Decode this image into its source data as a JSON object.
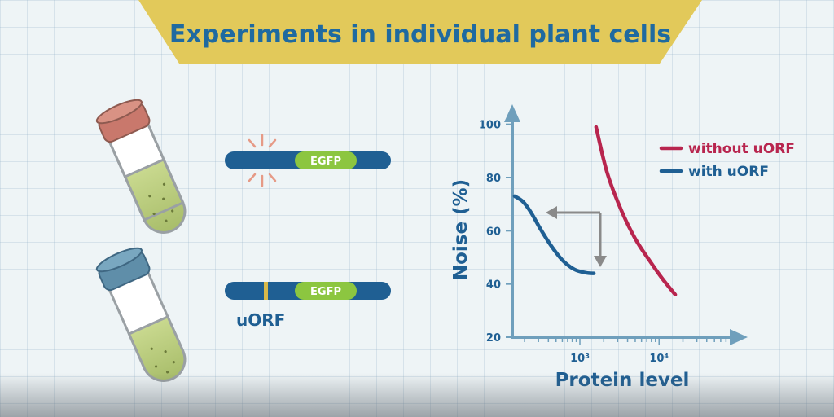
{
  "title": "Experiments in individual plant cells",
  "colors": {
    "banner": "#e2c95a",
    "title": "#1f6aa0",
    "gene_bar": "#1f5f93",
    "egfp": "#8cc640",
    "uorf_marker": "#d9b94a",
    "without_uorf": "#b8254e",
    "with_uorf": "#1f5f93",
    "axis": "#6f9fbc",
    "arrow": "#8a8a8a",
    "burst": "#e69a86"
  },
  "constructs": [
    {
      "gene_label": "EGFP",
      "has_uorf": false
    },
    {
      "gene_label": "EGFP",
      "has_uorf": true,
      "uorf_label": "uORF"
    }
  ],
  "tubes": [
    {
      "cap_color": "#c9786c",
      "icon": "test-tube-icon"
    },
    {
      "cap_color": "#5f8ea9",
      "icon": "test-tube-icon"
    }
  ],
  "chart_data": {
    "type": "line",
    "xlabel": "Protein level",
    "ylabel": "Noise (%)",
    "x_scale": "log",
    "x_ticks": [
      {
        "value": 1000,
        "label": "10³"
      },
      {
        "value": 10000,
        "label": "10⁴"
      }
    ],
    "x_range": [
      140,
      90000
    ],
    "y_ticks": [
      20,
      40,
      60,
      80,
      100
    ],
    "ylim": [
      20,
      110
    ],
    "legend_position": "top-right",
    "series": [
      {
        "name": "without uORF",
        "color": "#b8254e",
        "points": [
          [
            1600,
            99
          ],
          [
            2200,
            82
          ],
          [
            3300,
            68
          ],
          [
            5000,
            57
          ],
          [
            7500,
            49
          ],
          [
            11000,
            42
          ],
          [
            16000,
            36
          ]
        ]
      },
      {
        "name": "with uORF",
        "color": "#1f5f93",
        "points": [
          [
            150,
            73
          ],
          [
            190,
            71
          ],
          [
            240,
            67
          ],
          [
            320,
            60.5
          ],
          [
            430,
            54.5
          ],
          [
            600,
            49
          ],
          [
            850,
            45.5
          ],
          [
            1200,
            44.2
          ],
          [
            1500,
            44
          ]
        ]
      }
    ],
    "annotation": "shift-arrow"
  }
}
